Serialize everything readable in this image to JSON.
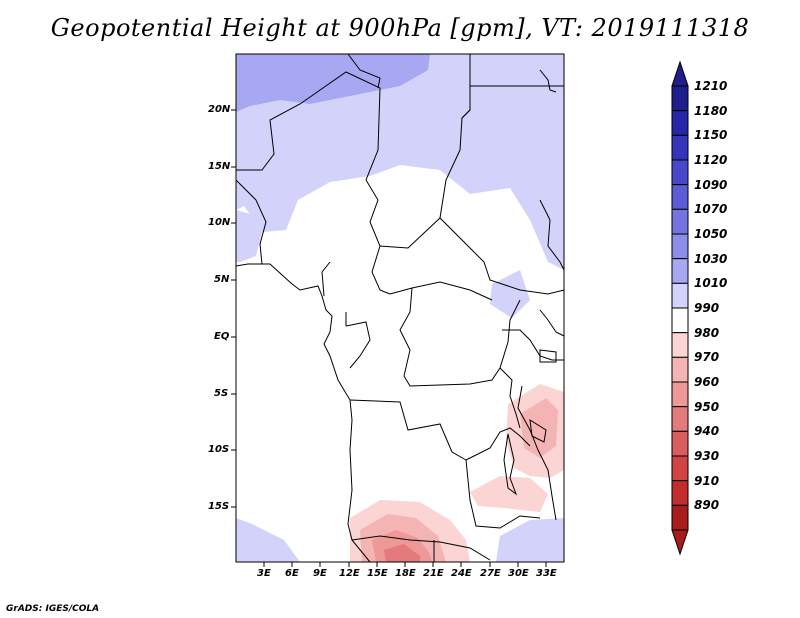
{
  "title": "Geopotential Height at 900hPa [gpm], VT: 2019111318",
  "credit": "GrADS: IGES/COLA",
  "map": {
    "lat_labels": [
      "20N",
      "15N",
      "10N",
      "5N",
      "EQ",
      "5S",
      "10S",
      "15S"
    ],
    "lon_labels": [
      "3E",
      "6E",
      "9E",
      "12E",
      "15E",
      "18E",
      "21E",
      "24E",
      "27E",
      "30E",
      "33E"
    ]
  },
  "colorbar": {
    "levels": [
      "1210",
      "1180",
      "1150",
      "1120",
      "1090",
      "1070",
      "1050",
      "1030",
      "1010",
      "990",
      "980",
      "970",
      "960",
      "950",
      "940",
      "930",
      "910",
      "890"
    ],
    "colors": [
      "#1e1e8c",
      "#2626a8",
      "#3535bb",
      "#4848cc",
      "#5c5cd8",
      "#7373e2",
      "#8c8ceb",
      "#a8a8f2",
      "#d2d2fa",
      "#ffffff",
      "#fbd4d4",
      "#f5b4b4",
      "#ee9898",
      "#e47a7a",
      "#da5c5c",
      "#d04444",
      "#c22c2c",
      "#a81c1c"
    ]
  }
}
